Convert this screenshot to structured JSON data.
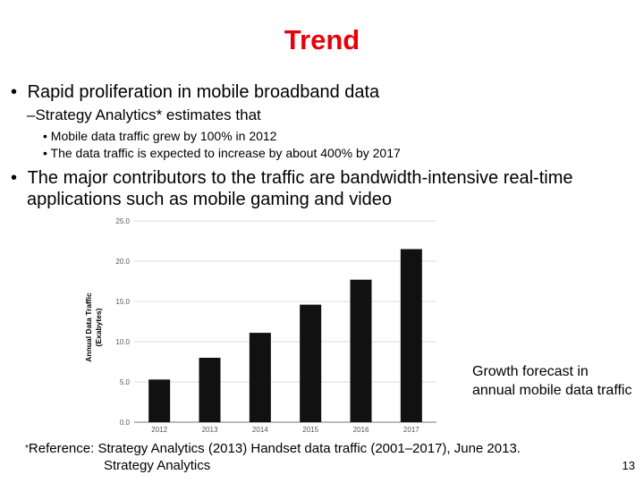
{
  "slide": {
    "title": "Trend",
    "bullets": [
      {
        "marker": "•",
        "text": "Rapid proliferation in mobile broadband data"
      },
      {
        "marker": "–",
        "text": "Strategy Analytics* estimates that"
      },
      {
        "marker": "•",
        "text": "Mobile data traffic grew by 100% in 2012"
      },
      {
        "marker": "•",
        "text": "The data traffic is expected to increase by about 400% by 2017"
      },
      {
        "marker": "•",
        "text_line1": "The major contributors to the traffic are bandwidth-intensive real-time",
        "text_line2": "applications such as mobile gaming and video"
      }
    ],
    "caption": "Growth forecast in annual mobile data traffic",
    "reference_marker": "*",
    "reference_line1": "Reference: Strategy Analytics (2013) Handset data traffic (2001–2017), June 2013.",
    "reference_line2": "Strategy Analytics",
    "page_number": "13"
  },
  "chart_data": {
    "type": "bar",
    "categories": [
      "2012",
      "2013",
      "2014",
      "2015",
      "2016",
      "2017"
    ],
    "values": [
      5.3,
      8.0,
      11.1,
      14.6,
      17.7,
      21.5
    ],
    "ylim": [
      0,
      25
    ],
    "yticks": [
      "0.0",
      "5.0",
      "10.0",
      "15.0",
      "20.0",
      "25.0"
    ],
    "ylabel_line1": "Annual Data Traffic",
    "ylabel_line2": "(Exabytes)",
    "bar_color": "#111111"
  }
}
